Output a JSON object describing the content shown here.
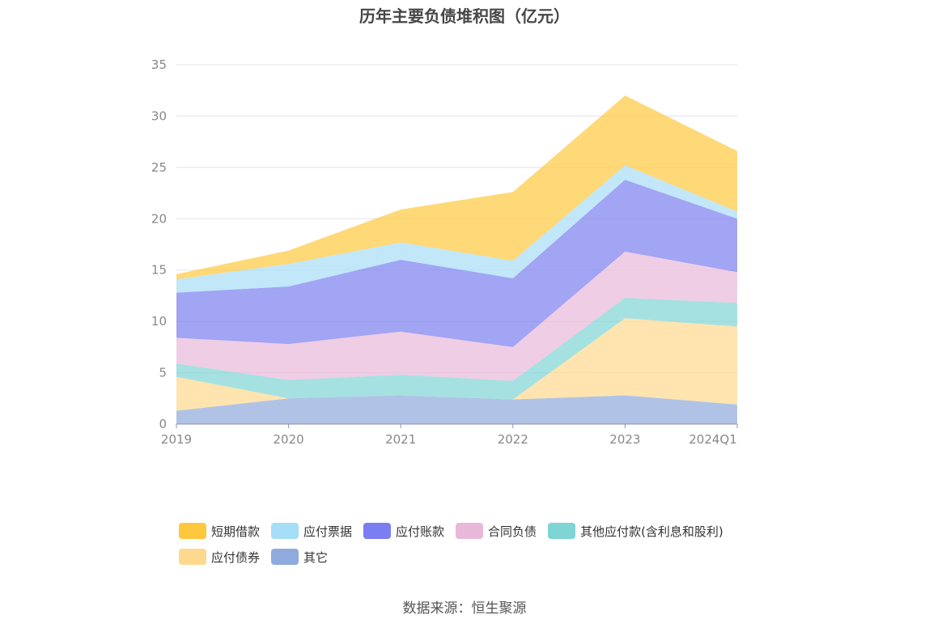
{
  "chart_data": {
    "type": "area",
    "stacked": true,
    "title": "历年主要负债堆积图（亿元）",
    "categories": [
      "2019",
      "2020",
      "2021",
      "2022",
      "2023",
      "2024Q1"
    ],
    "ylim": [
      0,
      35
    ],
    "yticks": [
      0,
      5,
      10,
      15,
      20,
      25,
      30,
      35
    ],
    "grid": true,
    "legend_position": "bottom",
    "series": [
      {
        "name": "其它",
        "color": "#8faadc",
        "values": [
          1.3,
          2.5,
          2.8,
          2.4,
          2.8,
          1.9
        ]
      },
      {
        "name": "应付债券",
        "color": "#ffd88f",
        "values": [
          3.3,
          0,
          0,
          0,
          7.5,
          7.6
        ]
      },
      {
        "name": "其他应付款(含利息和股利)",
        "color": "#7fd4d4",
        "values": [
          1.3,
          1.8,
          2.0,
          1.8,
          2.0,
          2.3
        ]
      },
      {
        "name": "合同负债",
        "color": "#e8b8d9",
        "values": [
          2.5,
          3.5,
          4.2,
          3.3,
          4.5,
          3.0
        ]
      },
      {
        "name": "应付账款",
        "color": "#7b7ef0",
        "values": [
          4.4,
          5.6,
          7.0,
          6.7,
          7.0,
          5.2
        ]
      },
      {
        "name": "应付票据",
        "color": "#a6ddf7",
        "values": [
          1.3,
          2.2,
          1.7,
          1.7,
          1.4,
          0.7
        ]
      },
      {
        "name": "短期借款",
        "color": "#ffc73d",
        "values": [
          0.5,
          1.3,
          3.2,
          6.7,
          6.8,
          5.9
        ]
      }
    ],
    "legend_order": [
      "短期借款",
      "应付票据",
      "应付账款",
      "合同负债",
      "其他应付款(含利息和股利)",
      "应付债券",
      "其它"
    ]
  },
  "source": "数据来源：恒生聚源"
}
